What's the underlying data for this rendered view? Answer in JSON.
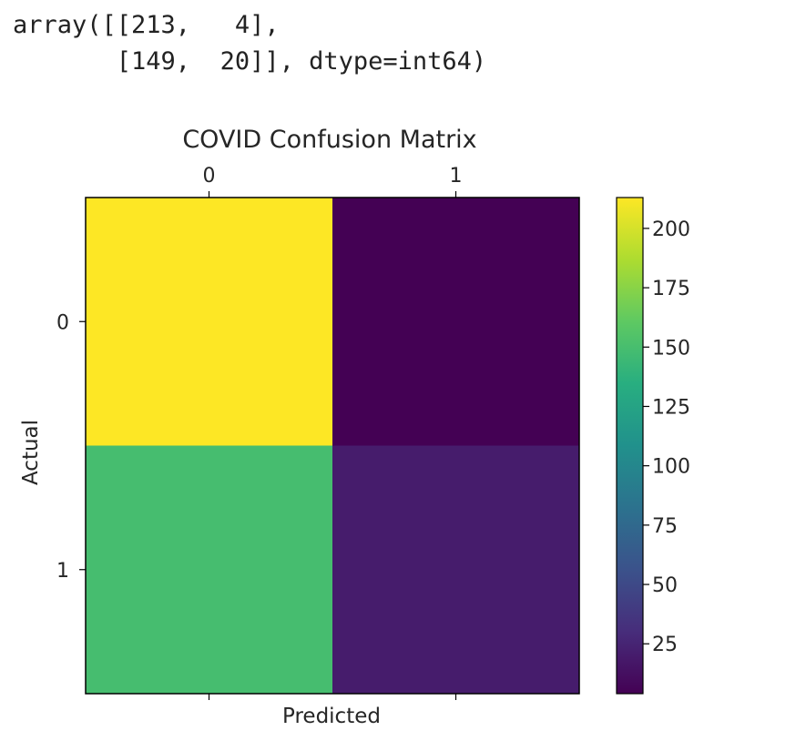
{
  "output": {
    "line1": "array([[213,   4],",
    "line2": "       [149,  20]], dtype=int64)"
  },
  "chart_data": {
    "type": "heatmap",
    "title": "COVID Confusion Matrix",
    "xlabel": "Predicted",
    "ylabel": "Actual",
    "x_categories": [
      "0",
      "1"
    ],
    "y_categories": [
      "0",
      "1"
    ],
    "values": [
      [
        213,
        4
      ],
      [
        149,
        20
      ]
    ],
    "colormap": "viridis",
    "colorbar": {
      "ticks": [
        25,
        50,
        75,
        100,
        125,
        150,
        175,
        200
      ],
      "range": [
        4,
        213
      ]
    },
    "x_tick_position": "top",
    "grid": false
  }
}
